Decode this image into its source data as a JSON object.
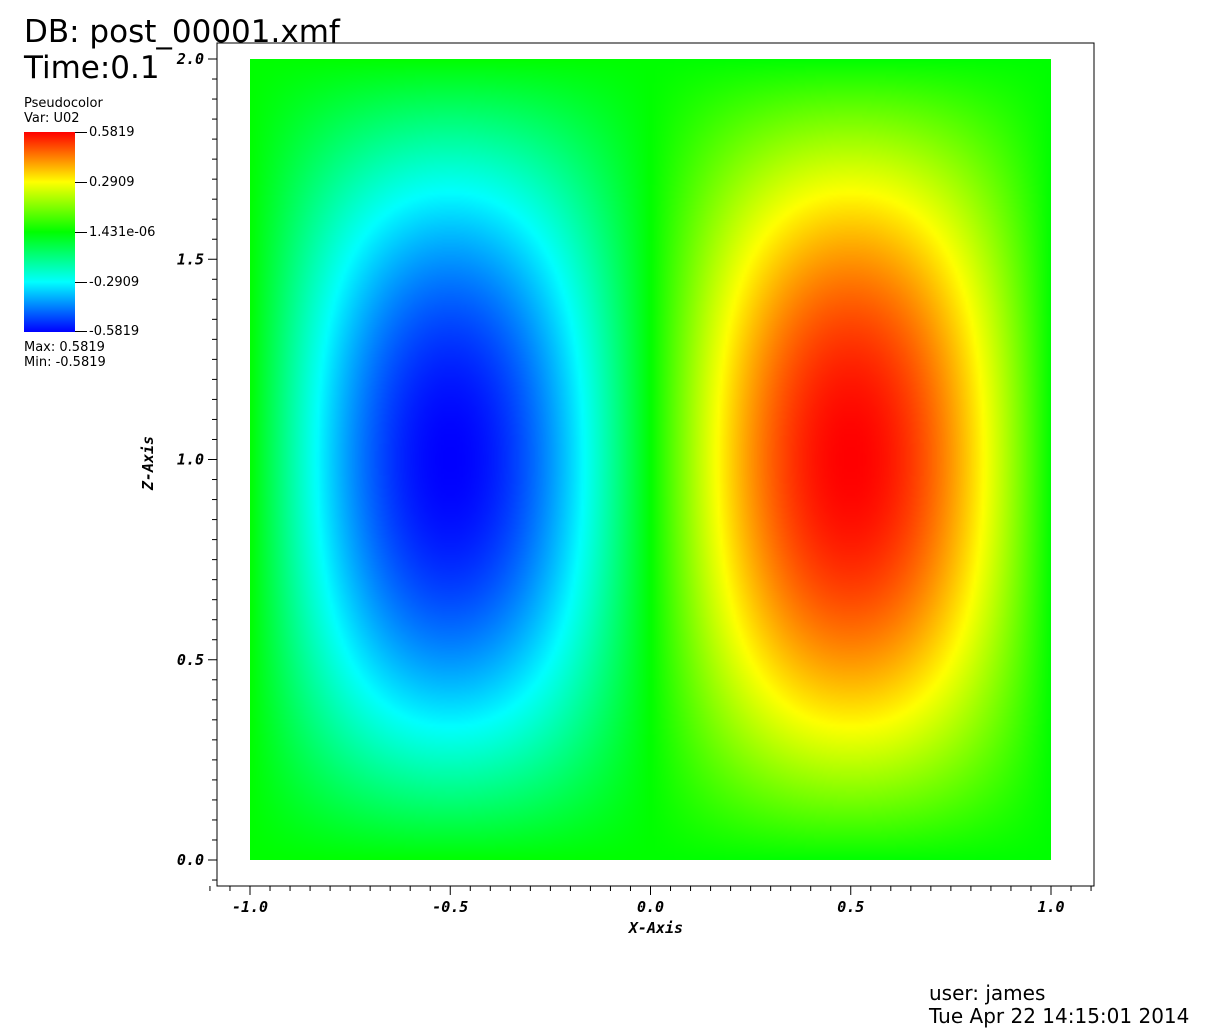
{
  "header": {
    "db": "DB: post_00001.xmf",
    "time": "Time:0.1"
  },
  "legend": {
    "plot_type": "Pseudocolor",
    "var": "Var: U02",
    "labels": [
      "0.5819",
      "0.2909",
      "1.431e-06",
      "-0.2909",
      "-0.5819"
    ],
    "max": "Max:  0.5819",
    "min": "Min: -0.5819",
    "colormap": [
      "#ff0000",
      "#ffff00",
      "#00ff00",
      "#00ffff",
      "#0000ff"
    ]
  },
  "footer": {
    "user": "user: james",
    "date": "Tue Apr 22 14:15:01 2014"
  },
  "chart_data": {
    "type": "heatmap",
    "xlabel": "X-Axis",
    "ylabel": "Z-Axis",
    "xlim": [
      -1.0,
      1.0
    ],
    "ylim": [
      0.0,
      2.0
    ],
    "x_ticks": [
      "-1.0",
      "-0.5",
      "0.0",
      "0.5",
      "1.0"
    ],
    "y_ticks": [
      "0.0",
      "0.5",
      "1.0",
      "1.5",
      "2.0"
    ],
    "value_range": [
      -0.5819,
      0.5819
    ],
    "features": [
      {
        "kind": "minimum",
        "x": -0.5,
        "z": 1.0,
        "value": -0.5819
      },
      {
        "kind": "maximum",
        "x": 0.5,
        "z": 1.0,
        "value": 0.5819
      }
    ]
  }
}
